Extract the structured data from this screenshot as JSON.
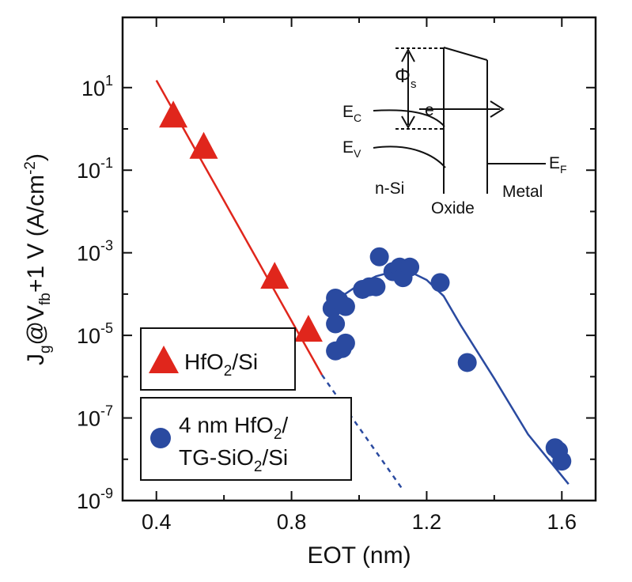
{
  "chart_data": {
    "type": "scatter",
    "xlabel": "EOT (nm)",
    "ylabel": {
      "parts": [
        {
          "t": "J"
        },
        {
          "t": "g",
          "sub": true
        },
        {
          "t": "@V"
        },
        {
          "t": "fb",
          "sub": true
        },
        {
          "t": "+1 V (A/cm"
        },
        {
          "t": "-2",
          "sup": true
        },
        {
          "t": ")"
        }
      ]
    },
    "x_axis": {
      "range": [
        0.3,
        1.7
      ],
      "ticks": [
        {
          "v": 0.4,
          "label": "0.4"
        },
        {
          "v": 0.8,
          "label": "0.8"
        },
        {
          "v": 1.2,
          "label": "1.2"
        },
        {
          "v": 1.6,
          "label": "1.6"
        }
      ],
      "minor_ticks": [
        0.6,
        1.0,
        1.4
      ]
    },
    "y_axis": {
      "scale": "log",
      "range_exp": [
        -9,
        2.7
      ],
      "ticks": [
        {
          "exp": 1,
          "label": "10",
          "sup": "1"
        },
        {
          "exp": -1,
          "label": "10",
          "sup": "-1"
        },
        {
          "exp": -3,
          "label": "10",
          "sup": "-3"
        },
        {
          "exp": -5,
          "label": "10",
          "sup": "-5"
        },
        {
          "exp": -7,
          "label": "10",
          "sup": "-7"
        },
        {
          "exp": -9,
          "label": "10",
          "sup": "-9"
        }
      ],
      "minor_ticks_exp": [
        0,
        -2,
        -4,
        -6,
        -8
      ]
    },
    "series": [
      {
        "legend": {
          "parts": [
            {
              "t": "HfO"
            },
            {
              "t": "2",
              "sub": true
            },
            {
              "t": "/Si"
            }
          ]
        },
        "marker": "triangle",
        "color": "#e0261c",
        "points": [
          {
            "x": 0.45,
            "y": 2.0
          },
          {
            "x": 0.54,
            "y": 0.35
          },
          {
            "x": 0.75,
            "y": 0.00025
          },
          {
            "x": 0.85,
            "y": 1.3e-05
          }
        ],
        "fit_solid": [
          {
            "x": 0.4,
            "y": 15
          },
          {
            "x": 0.89,
            "y": 1.1e-06
          }
        ],
        "fit_dashed": [
          {
            "x": 0.89,
            "y": 1.1e-06
          },
          {
            "x": 1.13,
            "y": 1.8e-09
          }
        ]
      },
      {
        "legend": {
          "line1": [
            {
              "t": "4 nm HfO"
            },
            {
              "t": "2",
              "sub": true
            },
            {
              "t": "/"
            }
          ],
          "line2": [
            {
              "t": "TG-SiO"
            },
            {
              "t": "2",
              "sub": true
            },
            {
              "t": "/Si"
            }
          ]
        },
        "marker": "circle",
        "color": "#2a4aa0",
        "points": [
          {
            "x": 0.92,
            "y": 4.5e-05
          },
          {
            "x": 0.93,
            "y": 8e-05
          },
          {
            "x": 0.94,
            "y": 7e-05
          },
          {
            "x": 0.96,
            "y": 5e-05
          },
          {
            "x": 0.93,
            "y": 1.9e-05
          },
          {
            "x": 0.93,
            "y": 4.2e-06
          },
          {
            "x": 0.95,
            "y": 4.8e-06
          },
          {
            "x": 0.96,
            "y": 6.5e-06
          },
          {
            "x": 1.01,
            "y": 0.00013
          },
          {
            "x": 1.03,
            "y": 0.00015
          },
          {
            "x": 1.05,
            "y": 0.00015
          },
          {
            "x": 1.06,
            "y": 0.0008
          },
          {
            "x": 1.1,
            "y": 0.00035
          },
          {
            "x": 1.12,
            "y": 0.00045
          },
          {
            "x": 1.13,
            "y": 0.00025
          },
          {
            "x": 1.15,
            "y": 0.00045
          },
          {
            "x": 1.24,
            "y": 0.00019
          },
          {
            "x": 1.32,
            "y": 2.2e-06
          },
          {
            "x": 1.58,
            "y": 1.9e-08
          },
          {
            "x": 1.59,
            "y": 1.6e-08
          },
          {
            "x": 1.6,
            "y": 9e-09
          }
        ],
        "fit_curve": [
          {
            "x": 0.9,
            "y": 4e-05
          },
          {
            "x": 0.95,
            "y": 9e-05
          },
          {
            "x": 1.0,
            "y": 0.00017
          },
          {
            "x": 1.05,
            "y": 0.00027
          },
          {
            "x": 1.1,
            "y": 0.00035
          },
          {
            "x": 1.15,
            "y": 0.00035
          },
          {
            "x": 1.2,
            "y": 0.00022
          },
          {
            "x": 1.25,
            "y": 9e-05
          },
          {
            "x": 1.3,
            "y": 1.8e-05
          },
          {
            "x": 1.4,
            "y": 9e-07
          },
          {
            "x": 1.5,
            "y": 4e-08
          },
          {
            "x": 1.62,
            "y": 2.5e-09
          }
        ]
      }
    ],
    "inset": {
      "labels": {
        "phi": "Φ",
        "phi_sub": "s",
        "e": "e",
        "ec": {
          "base": "E",
          "sub": "C"
        },
        "ev": {
          "base": "E",
          "sub": "V"
        },
        "ef": {
          "base": "E",
          "sub": "F"
        },
        "nsi": "n-Si",
        "oxide": "Oxide",
        "metal": "Metal"
      }
    },
    "grid": false,
    "legend_position": "bottom-left"
  }
}
